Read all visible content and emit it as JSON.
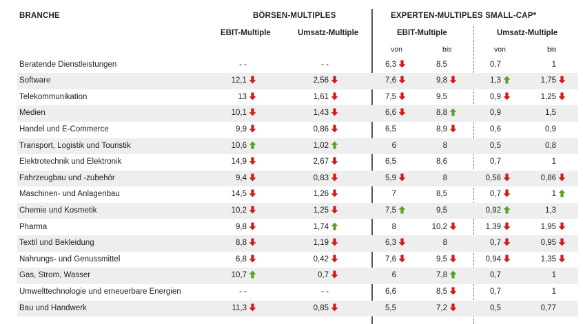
{
  "headers": {
    "branche": "BRANCHE",
    "boersen": "BÖRSEN-MULTIPLES",
    "experten": "EXPERTEN-MULTIPLES SMALL-CAP*",
    "ebit1": "EBIT-Multiple",
    "umsatz1": "Umsatz-Multiple",
    "ebit2": "EBIT-Multiple",
    "umsatz2": "Umsatz-Multiple",
    "von1": "von",
    "bis1": "bis",
    "von2": "von",
    "bis2": "bis"
  },
  "colors": {
    "down": "#d11a1a",
    "up": "#5aa02c",
    "shade": "#eeeeee"
  },
  "rows": [
    {
      "name": "Beratende Dienstleistungen",
      "c": [
        [
          "- -",
          ""
        ],
        [
          "- -",
          ""
        ],
        [
          "6,3",
          "down"
        ],
        [
          "8,5",
          ""
        ],
        [
          "0,7",
          ""
        ],
        [
          "1",
          ""
        ]
      ]
    },
    {
      "name": "Software",
      "c": [
        [
          "12,1",
          "down"
        ],
        [
          "2,56",
          "down"
        ],
        [
          "7,6",
          "down"
        ],
        [
          "9,8",
          "down"
        ],
        [
          "1,3",
          "up"
        ],
        [
          "1,75",
          "down"
        ]
      ]
    },
    {
      "name": "Telekommunikation",
      "c": [
        [
          "13",
          "down"
        ],
        [
          "1,61",
          "down"
        ],
        [
          "7,5",
          "down"
        ],
        [
          "9,5",
          ""
        ],
        [
          "0,9",
          "down"
        ],
        [
          "1,25",
          "down"
        ]
      ]
    },
    {
      "name": "Medien",
      "c": [
        [
          "10,1",
          "down"
        ],
        [
          "1,43",
          "down"
        ],
        [
          "6,6",
          "down"
        ],
        [
          "8,8",
          "up"
        ],
        [
          "0,9",
          ""
        ],
        [
          "1,5",
          ""
        ]
      ]
    },
    {
      "name": "Handel und E-Commerce",
      "c": [
        [
          "9,9",
          "down"
        ],
        [
          "0,86",
          "down"
        ],
        [
          "6,5",
          ""
        ],
        [
          "8,9",
          "down"
        ],
        [
          "0,6",
          ""
        ],
        [
          "0,9",
          ""
        ]
      ]
    },
    {
      "name": "Transport, Logistik und Touristik",
      "c": [
        [
          "10,6",
          "up"
        ],
        [
          "1,02",
          "up"
        ],
        [
          "6",
          ""
        ],
        [
          "8",
          ""
        ],
        [
          "0,5",
          ""
        ],
        [
          "0,8",
          ""
        ]
      ]
    },
    {
      "name": "Elektrotechnik und Elektronik",
      "c": [
        [
          "14,9",
          "down"
        ],
        [
          "2,67",
          "down"
        ],
        [
          "6,5",
          ""
        ],
        [
          "8,6",
          ""
        ],
        [
          "0,7",
          ""
        ],
        [
          "1",
          ""
        ]
      ]
    },
    {
      "name": "Fahrzeugbau und -zubehör",
      "c": [
        [
          "9,4",
          "down"
        ],
        [
          "0,83",
          "down"
        ],
        [
          "5,9",
          "down"
        ],
        [
          "8",
          ""
        ],
        [
          "0,56",
          "down"
        ],
        [
          "0,86",
          "down"
        ]
      ]
    },
    {
      "name": "Maschinen- und Anlagenbau",
      "c": [
        [
          "14,5",
          "down"
        ],
        [
          "1,26",
          "down"
        ],
        [
          "7",
          ""
        ],
        [
          "8,5",
          ""
        ],
        [
          "0,7",
          "down"
        ],
        [
          "1",
          "up"
        ]
      ]
    },
    {
      "name": "Chemie und Kosmetik",
      "c": [
        [
          "10,2",
          "down"
        ],
        [
          "1,25",
          "down"
        ],
        [
          "7,5",
          "up"
        ],
        [
          "9,5",
          ""
        ],
        [
          "0,92",
          "up"
        ],
        [
          "1,3",
          ""
        ]
      ]
    },
    {
      "name": "Pharma",
      "c": [
        [
          "9,8",
          "down"
        ],
        [
          "1,74",
          "up"
        ],
        [
          "8",
          ""
        ],
        [
          "10,2",
          "down"
        ],
        [
          "1,39",
          "down"
        ],
        [
          "1,95",
          "down"
        ]
      ]
    },
    {
      "name": "Textil und Bekleidung",
      "c": [
        [
          "8,8",
          "down"
        ],
        [
          "1,19",
          "down"
        ],
        [
          "6,3",
          "down"
        ],
        [
          "8",
          ""
        ],
        [
          "0,7",
          "down"
        ],
        [
          "0,95",
          "down"
        ]
      ]
    },
    {
      "name": "Nahrungs- und Genussmittel",
      "c": [
        [
          "6,8",
          "down"
        ],
        [
          "0,42",
          "down"
        ],
        [
          "7,6",
          "down"
        ],
        [
          "9,5",
          "down"
        ],
        [
          "0,94",
          "down"
        ],
        [
          "1,35",
          "down"
        ]
      ]
    },
    {
      "name": "Gas, Strom, Wasser",
      "c": [
        [
          "10,7",
          "up"
        ],
        [
          "0,7",
          "down"
        ],
        [
          "6",
          ""
        ],
        [
          "7,8",
          "up"
        ],
        [
          "0,7",
          ""
        ],
        [
          "1",
          ""
        ]
      ]
    },
    {
      "name": "Umwelttechnologie und erneuerbare Energien",
      "c": [
        [
          "- -",
          ""
        ],
        [
          "- -",
          ""
        ],
        [
          "6,6",
          ""
        ],
        [
          "8,5",
          "down"
        ],
        [
          "0,7",
          ""
        ],
        [
          "1",
          ""
        ]
      ]
    },
    {
      "name": "Bau und Handwerk",
      "c": [
        [
          "11,3",
          "down"
        ],
        [
          "0,85",
          "down"
        ],
        [
          "5,5",
          ""
        ],
        [
          "7,2",
          "down"
        ],
        [
          "0,5",
          ""
        ],
        [
          "0,77",
          ""
        ]
      ]
    }
  ]
}
